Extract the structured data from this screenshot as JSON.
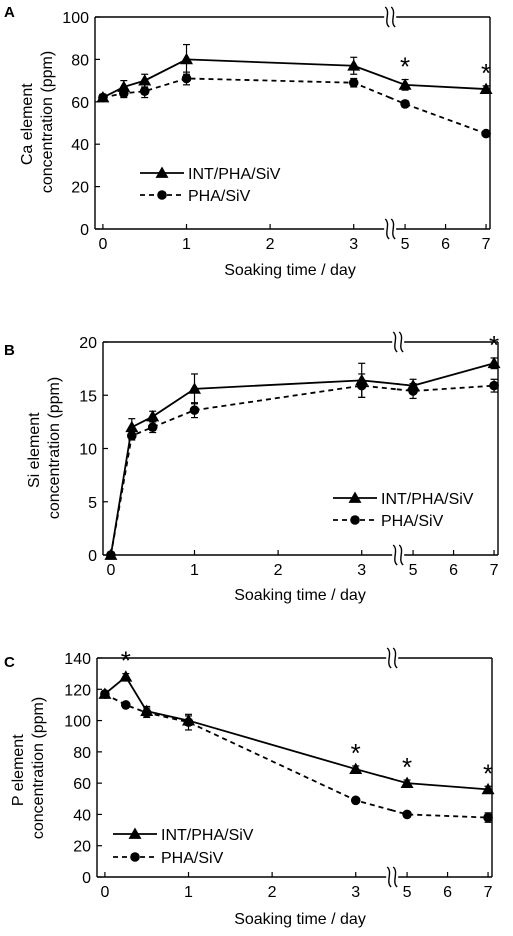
{
  "charts": {
    "A": {
      "panel_letter": "A",
      "ylabel_lines": [
        "Ca element",
        "concentration (ppm)"
      ],
      "xlabel": "Soaking time / day"
    },
    "B": {
      "panel_letter": "B",
      "ylabel_lines": [
        "Si element",
        "concentration (ppm)"
      ],
      "xlabel": "Soaking time / day"
    },
    "C": {
      "panel_letter": "C",
      "ylabel_lines": [
        "P element",
        "concentration (ppm)"
      ],
      "xlabel": "Soaking time / day"
    }
  },
  "chart_data": [
    {
      "type": "line",
      "panel": "A",
      "x_ticks": [
        0,
        1,
        2,
        3,
        5,
        6,
        7
      ],
      "y_ticks": [
        0,
        20,
        40,
        60,
        80,
        100
      ],
      "xlim_segments": [
        [
          0,
          3.5
        ],
        [
          4.5,
          7
        ]
      ],
      "ylim": [
        0,
        100
      ],
      "axis_break": "between 3 and 5",
      "legend": "bottom-left",
      "series": [
        {
          "name": "INT/PHA/SiV",
          "style": "solid",
          "marker": "triangle",
          "x": [
            0,
            0.25,
            0.5,
            1,
            3,
            5,
            7
          ],
          "y": [
            62,
            67,
            70,
            80,
            77,
            68,
            66
          ],
          "err": [
            1.5,
            3,
            3,
            7,
            4,
            2.5,
            1.5
          ]
        },
        {
          "name": "PHA/SiV",
          "style": "dashed",
          "marker": "circle",
          "x": [
            0,
            0.25,
            0.5,
            1,
            3,
            5,
            7
          ],
          "y": [
            62,
            64,
            65,
            71,
            69,
            59,
            45
          ],
          "err": [
            1.5,
            2,
            3,
            3,
            2,
            1.5,
            1
          ]
        }
      ],
      "annotations": [
        {
          "x": 5,
          "text": "*"
        },
        {
          "x": 7,
          "text": "*"
        }
      ]
    },
    {
      "type": "line",
      "panel": "B",
      "x_ticks": [
        0,
        1,
        2,
        3,
        5,
        6,
        7
      ],
      "y_ticks": [
        0,
        5,
        10,
        15,
        20
      ],
      "xlim_segments": [
        [
          0,
          3.5
        ],
        [
          4.5,
          7
        ]
      ],
      "ylim": [
        0,
        20
      ],
      "axis_break": "between 3 and 5",
      "legend": "bottom-right",
      "series": [
        {
          "name": "INT/PHA/SiV",
          "style": "solid",
          "marker": "triangle",
          "x": [
            0,
            0.25,
            0.5,
            1,
            3,
            5,
            7
          ],
          "y": [
            0,
            12,
            13,
            15.6,
            16.4,
            15.9,
            18
          ],
          "err": [
            0.1,
            0.8,
            0.5,
            1.4,
            1.6,
            0.6,
            0.5
          ]
        },
        {
          "name": "PHA/SiV",
          "style": "dashed",
          "marker": "circle",
          "x": [
            0,
            0.25,
            0.5,
            1,
            3,
            5,
            7
          ],
          "y": [
            0,
            11.2,
            12,
            13.6,
            15.9,
            15.4,
            15.9
          ],
          "err": [
            0.1,
            0.4,
            0.5,
            0.7,
            1.1,
            0.7,
            0.6
          ]
        }
      ],
      "annotations": [
        {
          "x": 7,
          "text": "*"
        }
      ]
    },
    {
      "type": "line",
      "panel": "C",
      "x_ticks": [
        0,
        1,
        2,
        3,
        5,
        6,
        7
      ],
      "y_ticks": [
        0,
        20,
        40,
        60,
        80,
        100,
        120,
        140
      ],
      "xlim_segments": [
        [
          0,
          3.5
        ],
        [
          4.5,
          7
        ]
      ],
      "ylim": [
        0,
        140
      ],
      "axis_break": "between 3 and 5",
      "legend": "bottom-left",
      "series": [
        {
          "name": "INT/PHA/SiV",
          "style": "solid",
          "marker": "triangle",
          "x": [
            0,
            0.25,
            0.5,
            1,
            3,
            5,
            7
          ],
          "y": [
            117,
            128,
            106,
            100,
            69,
            60,
            56
          ],
          "err": [
            1.5,
            2,
            3,
            3,
            2,
            2,
            2
          ]
        },
        {
          "name": "PHA/SiV",
          "style": "dashed",
          "marker": "circle",
          "x": [
            0,
            0.25,
            0.5,
            1,
            3,
            5,
            7
          ],
          "y": [
            117,
            110,
            105,
            99,
            49,
            40,
            38
          ],
          "err": [
            1.5,
            1.5,
            3,
            5,
            1.5,
            1.5,
            3
          ]
        }
      ],
      "annotations": [
        {
          "x": 0.25,
          "text": "*"
        },
        {
          "x": 3,
          "text": "*"
        },
        {
          "x": 5,
          "text": "*"
        },
        {
          "x": 7,
          "text": "*"
        }
      ]
    }
  ]
}
